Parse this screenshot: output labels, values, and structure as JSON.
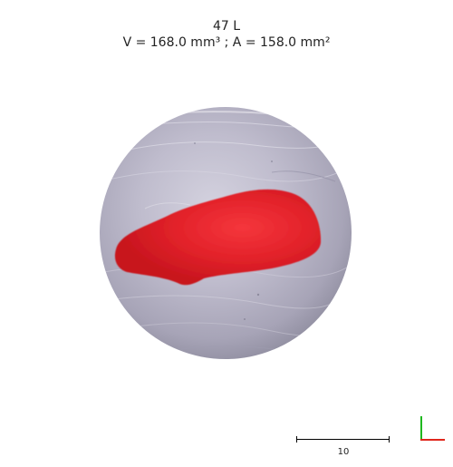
{
  "header": {
    "title": "47 L",
    "measurement": "V = 168.0 mm³ ; A = 158.0 mm²"
  },
  "scale_bar": {
    "label": "10"
  },
  "colors": {
    "lesion": "#e8232b",
    "skin": "#b9b6c8",
    "axis_x": "#e0261c",
    "axis_y": "#1fb81f"
  },
  "icons": {
    "orientation": "xy-axes-icon"
  }
}
